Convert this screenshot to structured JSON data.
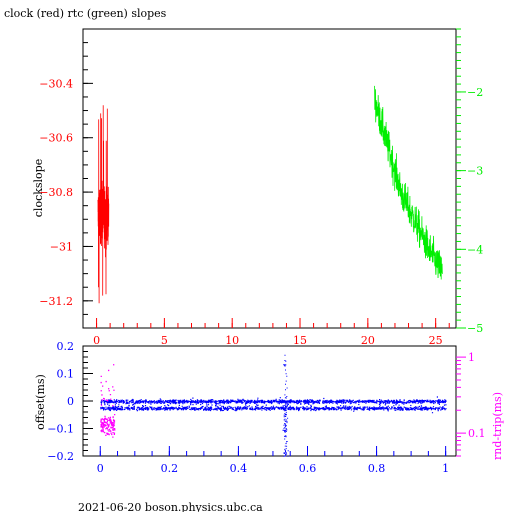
{
  "title": "clock (red) rtc (green) slopes",
  "footer": "2021-06-20  boson.physics.ubc.ca",
  "chart_data": [
    {
      "type": "line",
      "xlim": [
        -1,
        26.5
      ],
      "xticks": [
        "0",
        "5",
        "10",
        "15",
        "20",
        "25"
      ],
      "ylabel": "clockslope",
      "ylim_left": [
        -31.3,
        -30.2
      ],
      "yticks_left": [
        "-30.4",
        "-30.6",
        "-30.8",
        "-31",
        "-31.2"
      ],
      "ylim_right": [
        -5,
        -1.2
      ],
      "yticks_right": [
        "-2",
        "-3",
        "-4",
        "-5"
      ],
      "colors": {
        "red": "#ff0000",
        "green": "#00ee00"
      },
      "series": [
        {
          "name": "clock",
          "axis": "left",
          "x_range": [
            0.1,
            0.9
          ],
          "y_range": [
            -31.25,
            -30.45
          ],
          "y_center": -30.88
        },
        {
          "name": "rtc",
          "axis": "right",
          "x_range": [
            20.5,
            25.5
          ],
          "y_range": [
            -4.5,
            -1.8
          ],
          "trend": [
            [
              20.5,
              -2.1
            ],
            [
              22.5,
              -3.3
            ],
            [
              24.5,
              -4.0
            ],
            [
              25.5,
              -4.3
            ]
          ]
        }
      ]
    },
    {
      "type": "scatter",
      "xlim": [
        -0.05,
        1.03
      ],
      "xticks": [
        "0",
        "0.2",
        "0.4",
        "0.6",
        "0.8",
        "1"
      ],
      "ylabel_left": "offset(ms)",
      "ylim_left": [
        -0.2,
        0.2
      ],
      "yticks_left": [
        "0.2",
        "0.1",
        "0",
        "-0.1",
        "-0.2"
      ],
      "ylabel_right": "rnd-trip(ms)",
      "ylim_right_log": [
        0.05,
        1.4
      ],
      "yticks_right": [
        "1",
        "0.1"
      ],
      "colors": {
        "blue": "#0000ff",
        "magenta": "#ff00ff"
      },
      "series": [
        {
          "name": "offset",
          "axis": "left",
          "x_range": [
            0,
            1
          ],
          "band": [
            -0.03,
            0.01
          ],
          "spike_x": 0.535
        },
        {
          "name": "rnd-trip",
          "axis": "right",
          "x_range": [
            0,
            0.04
          ],
          "y_range": [
            0.08,
            0.9
          ]
        }
      ]
    }
  ]
}
